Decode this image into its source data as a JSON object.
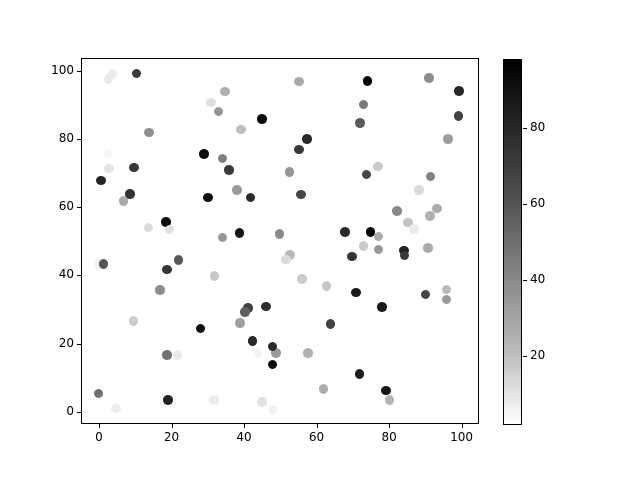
{
  "chart_data": {
    "type": "scatter",
    "title": "",
    "xlabel": "",
    "ylabel": "",
    "xlim": [
      -5,
      105
    ],
    "ylim": [
      -4,
      104
    ],
    "xticks": [
      0,
      20,
      40,
      60,
      80,
      100
    ],
    "yticks": [
      0,
      20,
      40,
      60,
      80,
      100
    ],
    "grid": false,
    "legend": "none",
    "marker": "circle",
    "colormap": "Greys",
    "colorbar": {
      "position": "right",
      "vmin": 2,
      "vmax": 98,
      "ticks": [
        20,
        40,
        60,
        80
      ],
      "top_color": "#000000",
      "bottom_color": "#ffffff"
    },
    "points": [
      {
        "x": 2.6,
        "y": 97.7,
        "v": 10
      },
      {
        "x": 3.7,
        "y": 99.1,
        "v": 9
      },
      {
        "x": 10.4,
        "y": 99.3,
        "v": 76
      },
      {
        "x": 34.8,
        "y": 94.0,
        "v": 32
      },
      {
        "x": 30.9,
        "y": 90.8,
        "v": 14
      },
      {
        "x": 32.9,
        "y": 88.1,
        "v": 42
      },
      {
        "x": 45.0,
        "y": 85.9,
        "v": 96
      },
      {
        "x": 39.1,
        "y": 82.8,
        "v": 26
      },
      {
        "x": 13.8,
        "y": 81.9,
        "v": 44
      },
      {
        "x": 2.6,
        "y": 75.8,
        "v": 5
      },
      {
        "x": 29.0,
        "y": 75.7,
        "v": 93
      },
      {
        "x": 34.1,
        "y": 74.3,
        "v": 50
      },
      {
        "x": 2.8,
        "y": 71.4,
        "v": 12
      },
      {
        "x": 9.7,
        "y": 71.7,
        "v": 77
      },
      {
        "x": 0.5,
        "y": 67.9,
        "v": 84
      },
      {
        "x": 35.9,
        "y": 71.0,
        "v": 76
      },
      {
        "x": 55.2,
        "y": 96.9,
        "v": 34
      },
      {
        "x": 74.1,
        "y": 97.1,
        "v": 97
      },
      {
        "x": 91.0,
        "y": 97.9,
        "v": 45
      },
      {
        "x": 99.3,
        "y": 94.1,
        "v": 83
      },
      {
        "x": 73.0,
        "y": 90.2,
        "v": 52
      },
      {
        "x": 72.0,
        "y": 84.8,
        "v": 64
      },
      {
        "x": 99.1,
        "y": 86.8,
        "v": 73
      },
      {
        "x": 57.4,
        "y": 80.0,
        "v": 83
      },
      {
        "x": 55.2,
        "y": 76.9,
        "v": 77
      },
      {
        "x": 96.2,
        "y": 80.0,
        "v": 40
      },
      {
        "x": 52.6,
        "y": 70.3,
        "v": 42
      },
      {
        "x": 73.8,
        "y": 69.6,
        "v": 72
      },
      {
        "x": 77.0,
        "y": 71.9,
        "v": 22
      },
      {
        "x": 91.4,
        "y": 69.0,
        "v": 50
      },
      {
        "x": 8.6,
        "y": 63.9,
        "v": 79
      },
      {
        "x": 6.8,
        "y": 61.9,
        "v": 34
      },
      {
        "x": 30.0,
        "y": 62.8,
        "v": 92
      },
      {
        "x": 38.1,
        "y": 65.1,
        "v": 40
      },
      {
        "x": 41.8,
        "y": 62.8,
        "v": 82
      },
      {
        "x": 18.5,
        "y": 55.7,
        "v": 95
      },
      {
        "x": 13.7,
        "y": 54.0,
        "v": 16
      },
      {
        "x": 19.4,
        "y": 53.5,
        "v": 13
      },
      {
        "x": 34.0,
        "y": 51.1,
        "v": 41
      },
      {
        "x": 38.7,
        "y": 52.5,
        "v": 90
      },
      {
        "x": 49.8,
        "y": 52.2,
        "v": 46
      },
      {
        "x": 0.0,
        "y": 43.4,
        "v": 8
      },
      {
        "x": 1.2,
        "y": 43.3,
        "v": 66
      },
      {
        "x": 21.9,
        "y": 44.5,
        "v": 65
      },
      {
        "x": 18.8,
        "y": 41.7,
        "v": 78
      },
      {
        "x": 31.9,
        "y": 39.8,
        "v": 23
      },
      {
        "x": 16.8,
        "y": 35.7,
        "v": 45
      },
      {
        "x": 55.7,
        "y": 63.7,
        "v": 72
      },
      {
        "x": 88.2,
        "y": 65.1,
        "v": 16
      },
      {
        "x": 82.2,
        "y": 58.9,
        "v": 46
      },
      {
        "x": 93.2,
        "y": 59.7,
        "v": 33
      },
      {
        "x": 91.3,
        "y": 57.5,
        "v": 31
      },
      {
        "x": 85.2,
        "y": 55.5,
        "v": 25
      },
      {
        "x": 86.9,
        "y": 53.6,
        "v": 10
      },
      {
        "x": 67.9,
        "y": 52.8,
        "v": 82
      },
      {
        "x": 74.9,
        "y": 52.7,
        "v": 97
      },
      {
        "x": 77.1,
        "y": 51.4,
        "v": 34
      },
      {
        "x": 73.0,
        "y": 48.7,
        "v": 22
      },
      {
        "x": 77.1,
        "y": 47.6,
        "v": 41
      },
      {
        "x": 84.1,
        "y": 47.3,
        "v": 85
      },
      {
        "x": 84.2,
        "y": 45.8,
        "v": 76
      },
      {
        "x": 90.8,
        "y": 48.0,
        "v": 34
      },
      {
        "x": 69.8,
        "y": 45.6,
        "v": 78
      },
      {
        "x": 52.7,
        "y": 46.0,
        "v": 28
      },
      {
        "x": 51.6,
        "y": 44.7,
        "v": 16
      },
      {
        "x": 56.0,
        "y": 39.0,
        "v": 22
      },
      {
        "x": 62.8,
        "y": 36.9,
        "v": 23
      },
      {
        "x": 70.9,
        "y": 35.0,
        "v": 88
      },
      {
        "x": 90.0,
        "y": 34.4,
        "v": 72
      },
      {
        "x": 95.9,
        "y": 35.9,
        "v": 28
      },
      {
        "x": 95.9,
        "y": 32.9,
        "v": 40
      },
      {
        "x": 9.5,
        "y": 26.6,
        "v": 21
      },
      {
        "x": 28.0,
        "y": 24.4,
        "v": 93
      },
      {
        "x": 41.1,
        "y": 30.5,
        "v": 74
      },
      {
        "x": 40.3,
        "y": 29.2,
        "v": 62
      },
      {
        "x": 46.1,
        "y": 30.9,
        "v": 81
      },
      {
        "x": 38.9,
        "y": 26.0,
        "v": 38
      },
      {
        "x": 18.8,
        "y": 16.6,
        "v": 55
      },
      {
        "x": 21.7,
        "y": 16.6,
        "v": 10
      },
      {
        "x": 42.4,
        "y": 20.8,
        "v": 83
      },
      {
        "x": 43.7,
        "y": 17.3,
        "v": 6
      },
      {
        "x": 48.8,
        "y": 17.3,
        "v": 40
      },
      {
        "x": 47.9,
        "y": 19.1,
        "v": 82
      },
      {
        "x": 47.9,
        "y": 13.9,
        "v": 94
      },
      {
        "x": 57.6,
        "y": 17.3,
        "v": 31
      },
      {
        "x": -0.2,
        "y": 5.3,
        "v": 56
      },
      {
        "x": 4.7,
        "y": 0.9,
        "v": 9
      },
      {
        "x": 19.0,
        "y": 3.5,
        "v": 85
      },
      {
        "x": 31.7,
        "y": 3.5,
        "v": 9
      },
      {
        "x": 44.9,
        "y": 2.9,
        "v": 13
      },
      {
        "x": 47.9,
        "y": 0.7,
        "v": 7
      },
      {
        "x": 78.1,
        "y": 30.8,
        "v": 89
      },
      {
        "x": 63.9,
        "y": 25.7,
        "v": 73
      },
      {
        "x": 71.8,
        "y": 11.0,
        "v": 87
      },
      {
        "x": 61.9,
        "y": 6.6,
        "v": 33
      },
      {
        "x": 79.1,
        "y": 6.2,
        "v": 90
      },
      {
        "x": 80.1,
        "y": 3.4,
        "v": 30
      }
    ]
  }
}
